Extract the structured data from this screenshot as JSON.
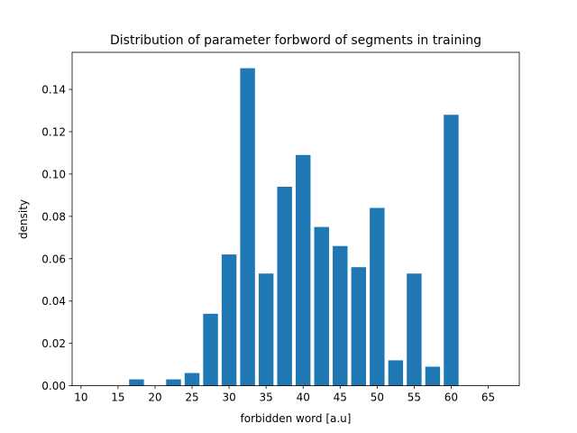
{
  "chart_data": {
    "type": "bar",
    "title": "Distribution of parameter forbword of segments in training",
    "xlabel": "forbidden word [a.u]",
    "ylabel": "density",
    "xlim": [
      8.8,
      69.2
    ],
    "ylim": [
      0,
      0.1575
    ],
    "xticks": [
      10,
      15,
      20,
      25,
      30,
      35,
      40,
      45,
      50,
      55,
      60,
      65
    ],
    "yticks": [
      0.0,
      0.02,
      0.04,
      0.06,
      0.08,
      0.1,
      0.12,
      0.14
    ],
    "ytick_labels": [
      "0.00",
      "0.02",
      "0.04",
      "0.06",
      "0.08",
      "0.10",
      "0.12",
      "0.14"
    ],
    "bar_width": 2.0,
    "color": "#1f77b4",
    "grid": false,
    "bars": [
      {
        "x": 17.5,
        "value": 0.003
      },
      {
        "x": 22.5,
        "value": 0.003
      },
      {
        "x": 25.0,
        "value": 0.006
      },
      {
        "x": 27.5,
        "value": 0.034
      },
      {
        "x": 30.0,
        "value": 0.062
      },
      {
        "x": 32.5,
        "value": 0.15
      },
      {
        "x": 35.0,
        "value": 0.053
      },
      {
        "x": 37.5,
        "value": 0.094
      },
      {
        "x": 40.0,
        "value": 0.109
      },
      {
        "x": 42.5,
        "value": 0.075
      },
      {
        "x": 45.0,
        "value": 0.066
      },
      {
        "x": 47.5,
        "value": 0.056
      },
      {
        "x": 50.0,
        "value": 0.084
      },
      {
        "x": 52.5,
        "value": 0.012
      },
      {
        "x": 55.0,
        "value": 0.053
      },
      {
        "x": 57.5,
        "value": 0.009
      },
      {
        "x": 60.0,
        "value": 0.128
      }
    ]
  }
}
